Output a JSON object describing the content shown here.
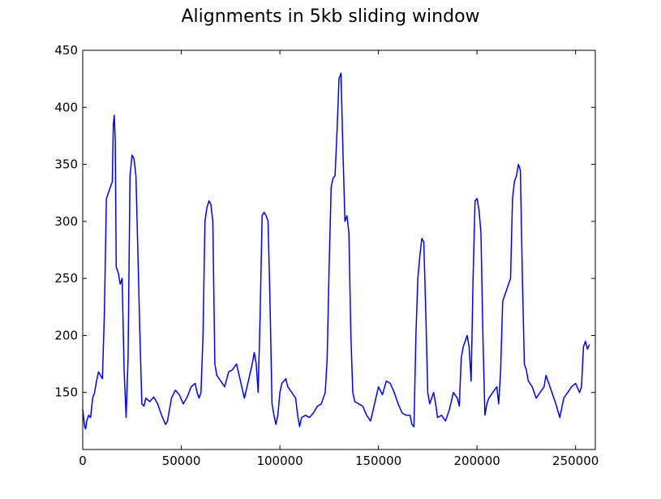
{
  "chart_data": {
    "type": "line",
    "title": "Alignments in 5kb sliding window",
    "xlabel": "",
    "ylabel": "",
    "xlim": [
      0,
      260000
    ],
    "ylim": [
      100,
      450
    ],
    "xticks": [
      0,
      50000,
      100000,
      150000,
      200000,
      250000
    ],
    "xtick_labels": [
      "0",
      "50000",
      "100000",
      "150000",
      "200000",
      "250000"
    ],
    "yticks": [
      150,
      200,
      250,
      300,
      350,
      400,
      450
    ],
    "ytick_labels": [
      "150",
      "200",
      "250",
      "300",
      "350",
      "400",
      "450"
    ],
    "grid": false,
    "legend": "none",
    "series": [
      {
        "color": "#0000ff",
        "points": [
          [
            0,
            135
          ],
          [
            1000,
            120
          ],
          [
            1500,
            118
          ],
          [
            2000,
            125
          ],
          [
            3000,
            130
          ],
          [
            4000,
            128
          ],
          [
            5000,
            145
          ],
          [
            6000,
            150
          ],
          [
            7000,
            160
          ],
          [
            8000,
            168
          ],
          [
            9000,
            165
          ],
          [
            10000,
            162
          ],
          [
            11000,
            220
          ],
          [
            12000,
            320
          ],
          [
            13000,
            325
          ],
          [
            14000,
            330
          ],
          [
            15000,
            335
          ],
          [
            15500,
            385
          ],
          [
            16000,
            393
          ],
          [
            16500,
            370
          ],
          [
            17000,
            260
          ],
          [
            18000,
            255
          ],
          [
            19000,
            245
          ],
          [
            20000,
            250
          ],
          [
            21000,
            170
          ],
          [
            22000,
            128
          ],
          [
            23000,
            180
          ],
          [
            24000,
            340
          ],
          [
            25000,
            358
          ],
          [
            26000,
            355
          ],
          [
            27000,
            340
          ],
          [
            28000,
            270
          ],
          [
            29000,
            200
          ],
          [
            30000,
            140
          ],
          [
            31000,
            138
          ],
          [
            32000,
            145
          ],
          [
            34000,
            142
          ],
          [
            36000,
            146
          ],
          [
            38000,
            140
          ],
          [
            40000,
            130
          ],
          [
            42000,
            122
          ],
          [
            43000,
            125
          ],
          [
            45000,
            145
          ],
          [
            47000,
            152
          ],
          [
            49000,
            148
          ],
          [
            51000,
            140
          ],
          [
            53000,
            146
          ],
          [
            55000,
            155
          ],
          [
            57000,
            158
          ],
          [
            58000,
            150
          ],
          [
            59000,
            145
          ],
          [
            60000,
            150
          ],
          [
            61000,
            200
          ],
          [
            62000,
            300
          ],
          [
            63000,
            312
          ],
          [
            64000,
            318
          ],
          [
            65000,
            315
          ],
          [
            66000,
            300
          ],
          [
            67000,
            175
          ],
          [
            68000,
            165
          ],
          [
            70000,
            160
          ],
          [
            72000,
            155
          ],
          [
            74000,
            168
          ],
          [
            76000,
            170
          ],
          [
            78000,
            175
          ],
          [
            80000,
            160
          ],
          [
            82000,
            145
          ],
          [
            84000,
            160
          ],
          [
            86000,
            175
          ],
          [
            87000,
            185
          ],
          [
            88000,
            175
          ],
          [
            89000,
            150
          ],
          [
            90000,
            220
          ],
          [
            91000,
            305
          ],
          [
            92000,
            308
          ],
          [
            93000,
            305
          ],
          [
            94000,
            300
          ],
          [
            95000,
            230
          ],
          [
            96000,
            140
          ],
          [
            97000,
            130
          ],
          [
            98000,
            122
          ],
          [
            99000,
            130
          ],
          [
            100000,
            150
          ],
          [
            101000,
            158
          ],
          [
            102000,
            160
          ],
          [
            103000,
            162
          ],
          [
            104000,
            155
          ],
          [
            106000,
            150
          ],
          [
            108000,
            145
          ],
          [
            109000,
            130
          ],
          [
            110000,
            120
          ],
          [
            111000,
            128
          ],
          [
            113000,
            130
          ],
          [
            115000,
            128
          ],
          [
            117000,
            132
          ],
          [
            119000,
            138
          ],
          [
            121000,
            140
          ],
          [
            123000,
            150
          ],
          [
            124000,
            180
          ],
          [
            125000,
            260
          ],
          [
            126000,
            330
          ],
          [
            127000,
            338
          ],
          [
            128000,
            340
          ],
          [
            129000,
            380
          ],
          [
            130000,
            425
          ],
          [
            131000,
            430
          ],
          [
            132000,
            360
          ],
          [
            133000,
            300
          ],
          [
            134000,
            305
          ],
          [
            135000,
            290
          ],
          [
            136000,
            200
          ],
          [
            137000,
            150
          ],
          [
            138000,
            142
          ],
          [
            140000,
            140
          ],
          [
            142000,
            138
          ],
          [
            144000,
            130
          ],
          [
            146000,
            125
          ],
          [
            148000,
            140
          ],
          [
            150000,
            155
          ],
          [
            152000,
            148
          ],
          [
            154000,
            160
          ],
          [
            156000,
            158
          ],
          [
            158000,
            150
          ],
          [
            160000,
            140
          ],
          [
            162000,
            132
          ],
          [
            164000,
            130
          ],
          [
            166000,
            130
          ],
          [
            167000,
            122
          ],
          [
            168000,
            120
          ],
          [
            169000,
            200
          ],
          [
            170000,
            250
          ],
          [
            171000,
            270
          ],
          [
            172000,
            285
          ],
          [
            173000,
            282
          ],
          [
            174000,
            220
          ],
          [
            175000,
            150
          ],
          [
            176000,
            140
          ],
          [
            177000,
            145
          ],
          [
            178000,
            150
          ],
          [
            179000,
            140
          ],
          [
            180000,
            128
          ],
          [
            182000,
            130
          ],
          [
            184000,
            125
          ],
          [
            186000,
            135
          ],
          [
            188000,
            150
          ],
          [
            190000,
            145
          ],
          [
            191000,
            138
          ],
          [
            192000,
            180
          ],
          [
            193000,
            190
          ],
          [
            194000,
            195
          ],
          [
            195000,
            200
          ],
          [
            196000,
            190
          ],
          [
            197000,
            160
          ],
          [
            198000,
            250
          ],
          [
            199000,
            318
          ],
          [
            200000,
            320
          ],
          [
            201000,
            310
          ],
          [
            202000,
            290
          ],
          [
            203000,
            200
          ],
          [
            204000,
            130
          ],
          [
            205000,
            140
          ],
          [
            206000,
            145
          ],
          [
            208000,
            150
          ],
          [
            210000,
            155
          ],
          [
            211000,
            140
          ],
          [
            212000,
            170
          ],
          [
            213000,
            230
          ],
          [
            214000,
            235
          ],
          [
            215000,
            240
          ],
          [
            216000,
            245
          ],
          [
            217000,
            250
          ],
          [
            218000,
            320
          ],
          [
            219000,
            335
          ],
          [
            220000,
            340
          ],
          [
            221000,
            350
          ],
          [
            222000,
            345
          ],
          [
            223000,
            250
          ],
          [
            224000,
            175
          ],
          [
            225000,
            170
          ],
          [
            226000,
            160
          ],
          [
            228000,
            155
          ],
          [
            230000,
            145
          ],
          [
            232000,
            150
          ],
          [
            234000,
            155
          ],
          [
            235000,
            165
          ],
          [
            236000,
            160
          ],
          [
            238000,
            150
          ],
          [
            240000,
            140
          ],
          [
            242000,
            128
          ],
          [
            244000,
            145
          ],
          [
            246000,
            150
          ],
          [
            248000,
            155
          ],
          [
            250000,
            158
          ],
          [
            252000,
            150
          ],
          [
            253000,
            155
          ],
          [
            254000,
            190
          ],
          [
            255000,
            195
          ],
          [
            256000,
            188
          ],
          [
            257000,
            192
          ]
        ]
      }
    ]
  }
}
